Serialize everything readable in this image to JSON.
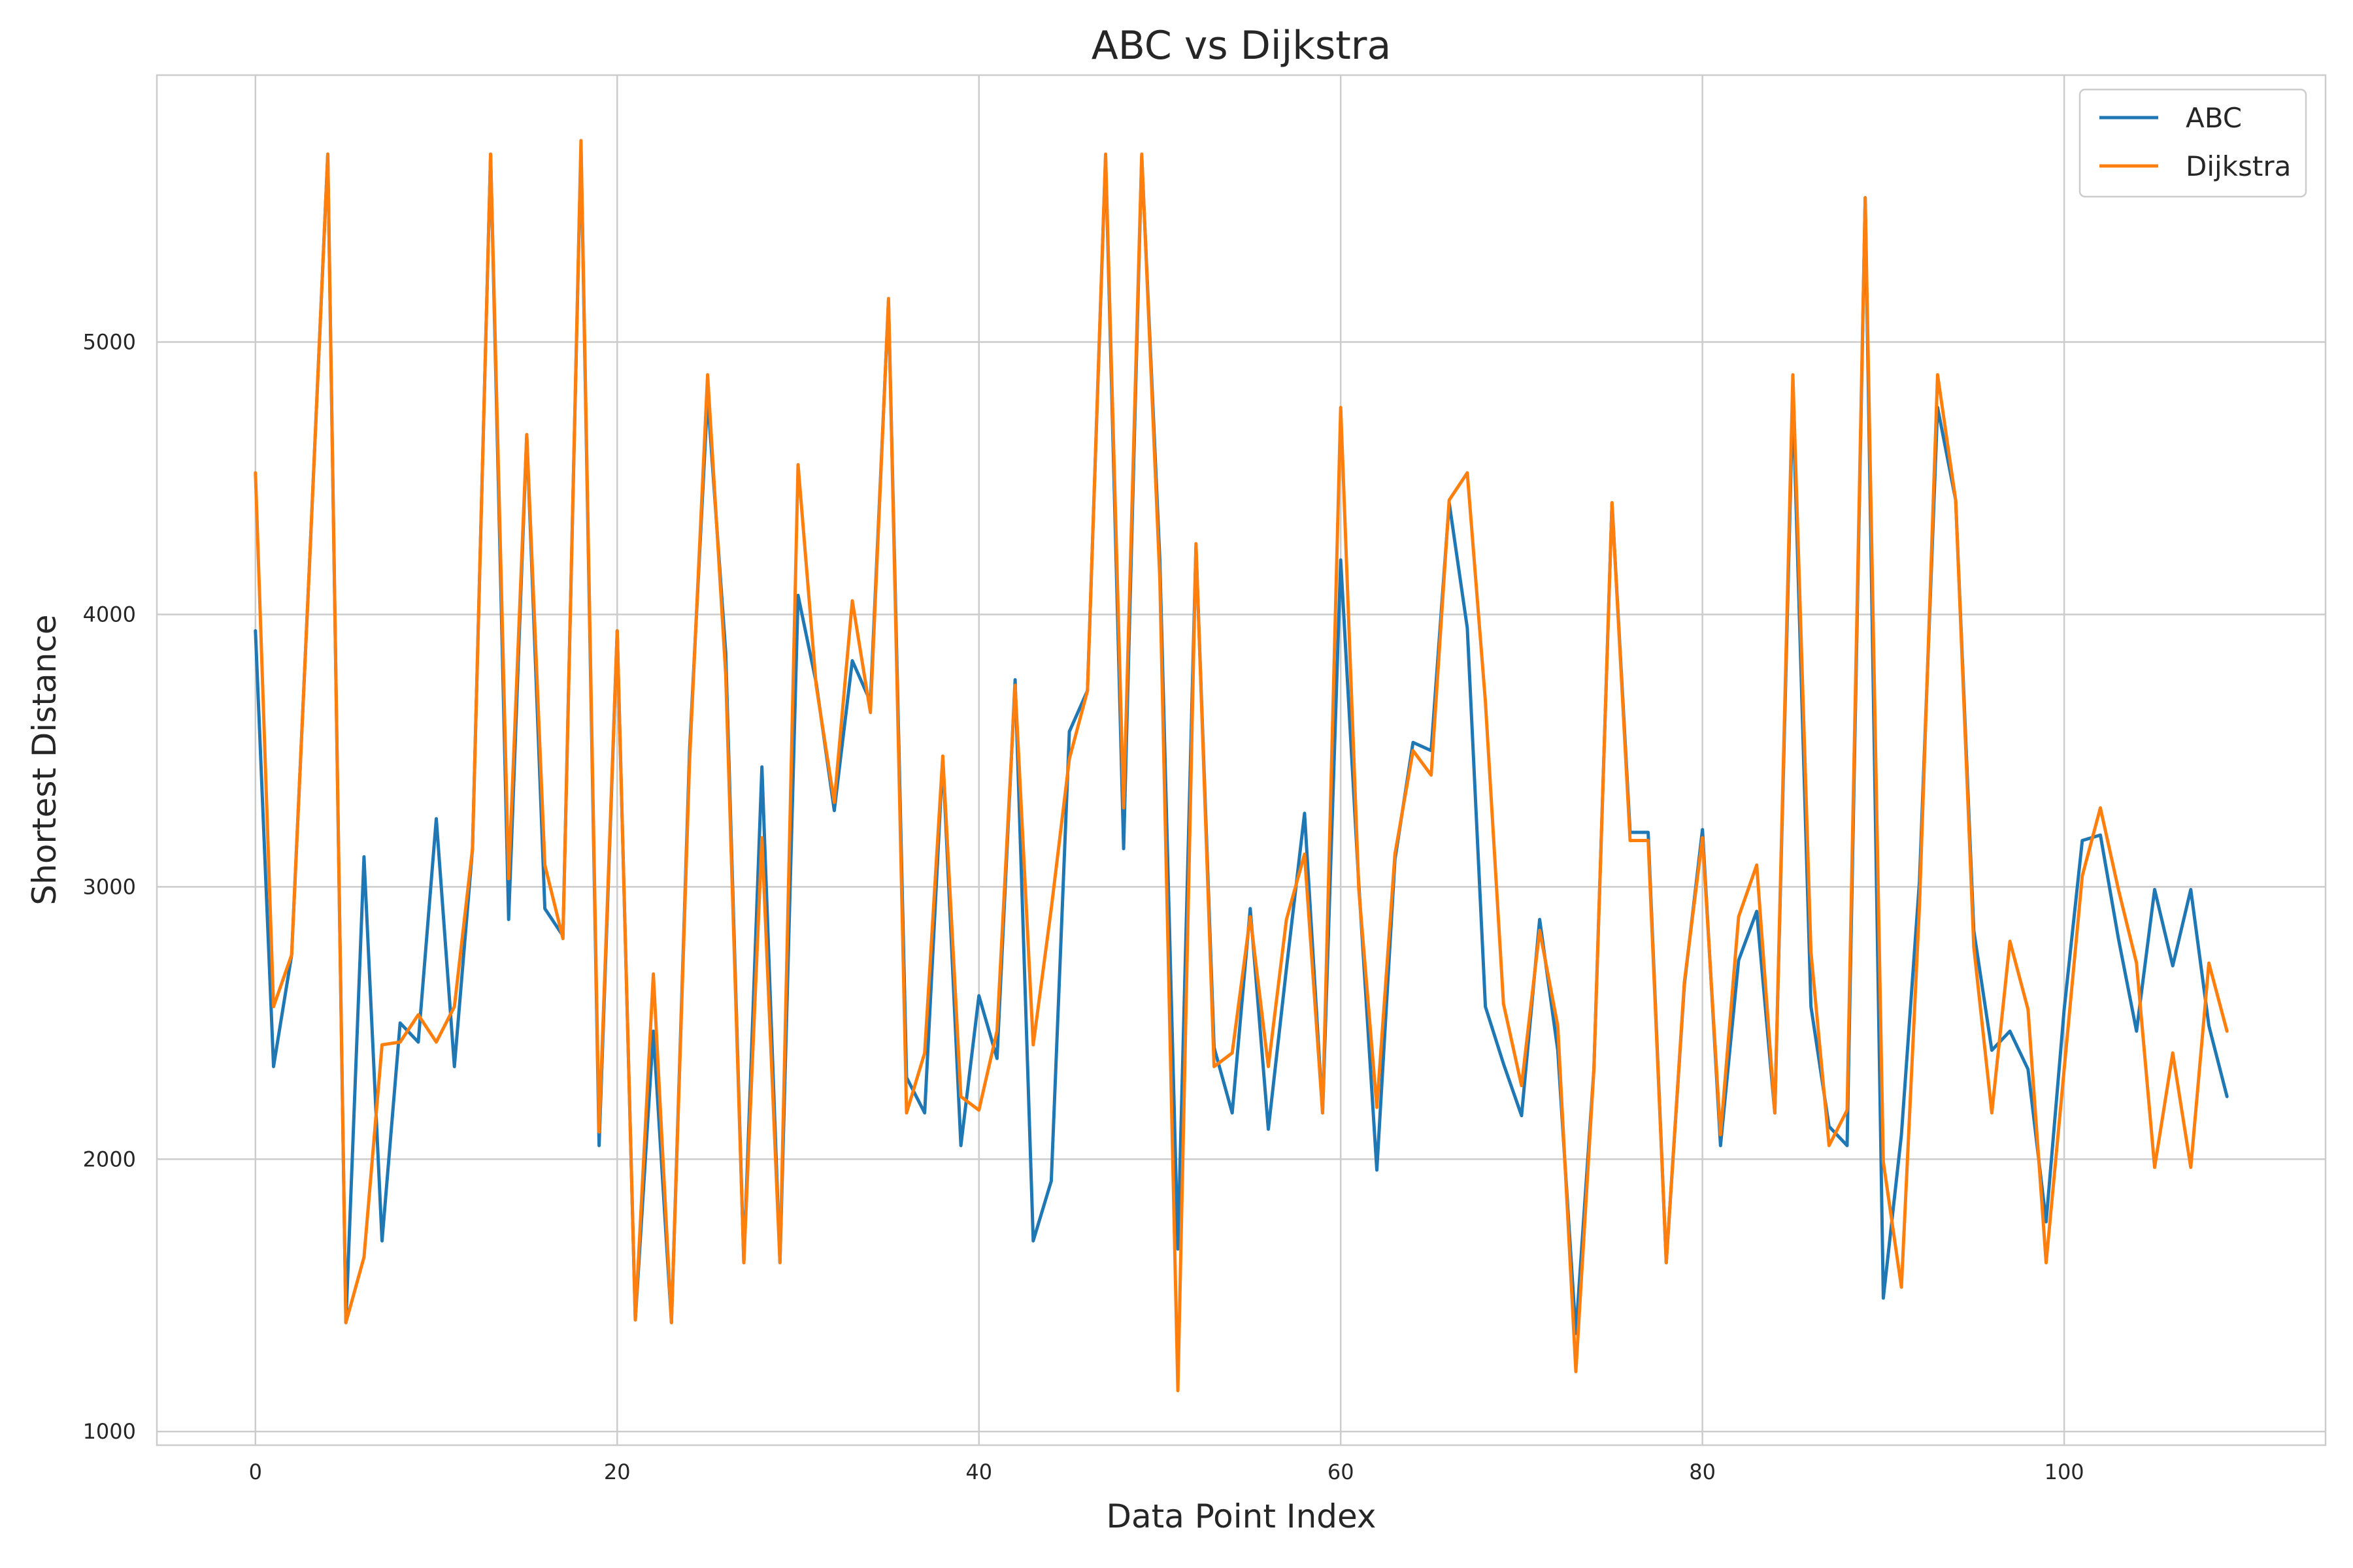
{
  "chart_data": {
    "type": "line",
    "title": "ABC vs Dijkstra",
    "xlabel": "Data Point Index",
    "ylabel": "Shortest Distance",
    "xlim": [
      -5.45,
      114.45
    ],
    "ylim": [
      950,
      5980
    ],
    "x_ticks": [
      0,
      20,
      40,
      60,
      80,
      100
    ],
    "y_ticks": [
      1000,
      2000,
      3000,
      4000,
      5000
    ],
    "grid": true,
    "legend_position": "top-right",
    "x": [
      0,
      1,
      2,
      3,
      4,
      5,
      6,
      7,
      8,
      9,
      10,
      11,
      12,
      13,
      14,
      15,
      16,
      17,
      18,
      19,
      20,
      21,
      22,
      23,
      24,
      25,
      26,
      27,
      28,
      29,
      30,
      31,
      32,
      33,
      34,
      35,
      36,
      37,
      38,
      39,
      40,
      41,
      42,
      43,
      44,
      45,
      46,
      47,
      48,
      49,
      50,
      51,
      52,
      53,
      54,
      55,
      56,
      57,
      58,
      59,
      60,
      61,
      62,
      63,
      64,
      65,
      66,
      67,
      68,
      69,
      70,
      71,
      72,
      73,
      74,
      75,
      76,
      77,
      78,
      79,
      80,
      81,
      82,
      83,
      84,
      85,
      86,
      87,
      88,
      89,
      90,
      91,
      92,
      93,
      94,
      95,
      96,
      97,
      98,
      99,
      100,
      101,
      102,
      103,
      104,
      105,
      106,
      107,
      108,
      109
    ],
    "series": [
      {
        "name": "ABC",
        "color": "#1f77b4",
        "values": [
          3940,
          2340,
          2750,
          4200,
          5690,
          1400,
          3110,
          1700,
          2500,
          2430,
          3250,
          2340,
          3140,
          5690,
          2880,
          4660,
          2920,
          2820,
          5720,
          2050,
          3940,
          1410,
          2470,
          1400,
          3500,
          4800,
          3860,
          1620,
          3440,
          1620,
          4070,
          3750,
          3280,
          3830,
          3680,
          5150,
          2300,
          2170,
          3470,
          2050,
          2600,
          2370,
          3760,
          1700,
          1920,
          3570,
          3720,
          5680,
          3140,
          5680,
          4200,
          1670,
          4250,
          2410,
          2170,
          2920,
          2110,
          2700,
          3270,
          2170,
          4200,
          3010,
          1960,
          3100,
          3530,
          3500,
          4410,
          3950,
          2560,
          2350,
          2160,
          2880,
          2400,
          1360,
          2330,
          4410,
          3200,
          3200,
          1620,
          2640,
          3210,
          2050,
          2730,
          2910,
          2170,
          4800,
          2560,
          2120,
          2050,
          5530,
          1490,
          2090,
          3020,
          4760,
          4420,
          2840,
          2400,
          2470,
          2330,
          1770,
          2550,
          3170,
          3190,
          2810,
          2470,
          2990,
          2710,
          2990,
          2490,
          2230
        ]
      },
      {
        "name": "Dijkstra",
        "color": "#ff7f0e",
        "values": [
          4520,
          2560,
          2750,
          4200,
          5690,
          1400,
          1640,
          2420,
          2430,
          2530,
          2430,
          2560,
          3140,
          5690,
          3030,
          4660,
          3080,
          2810,
          5740,
          2100,
          3940,
          1410,
          2680,
          1400,
          3460,
          4880,
          3780,
          1620,
          3180,
          1620,
          4550,
          3740,
          3310,
          4050,
          3640,
          5160,
          2170,
          2390,
          3480,
          2230,
          2180,
          2470,
          3740,
          2420,
          2920,
          3470,
          3720,
          5690,
          3290,
          5690,
          4130,
          1150,
          4260,
          2340,
          2390,
          2890,
          2340,
          2880,
          3120,
          2170,
          4760,
          2990,
          2190,
          3120,
          3500,
          3410,
          4420,
          4520,
          3680,
          2570,
          2270,
          2840,
          2490,
          1220,
          2330,
          4410,
          3170,
          3170,
          1620,
          2650,
          3180,
          2090,
          2890,
          3080,
          2170,
          4880,
          2760,
          2050,
          2180,
          5530,
          1990,
          1530,
          2930,
          4880,
          4420,
          2780,
          2170,
          2800,
          2550,
          1620,
          2330,
          3040,
          3290,
          2990,
          2720,
          1970,
          2390,
          1970,
          2720,
          2470
        ]
      }
    ]
  }
}
